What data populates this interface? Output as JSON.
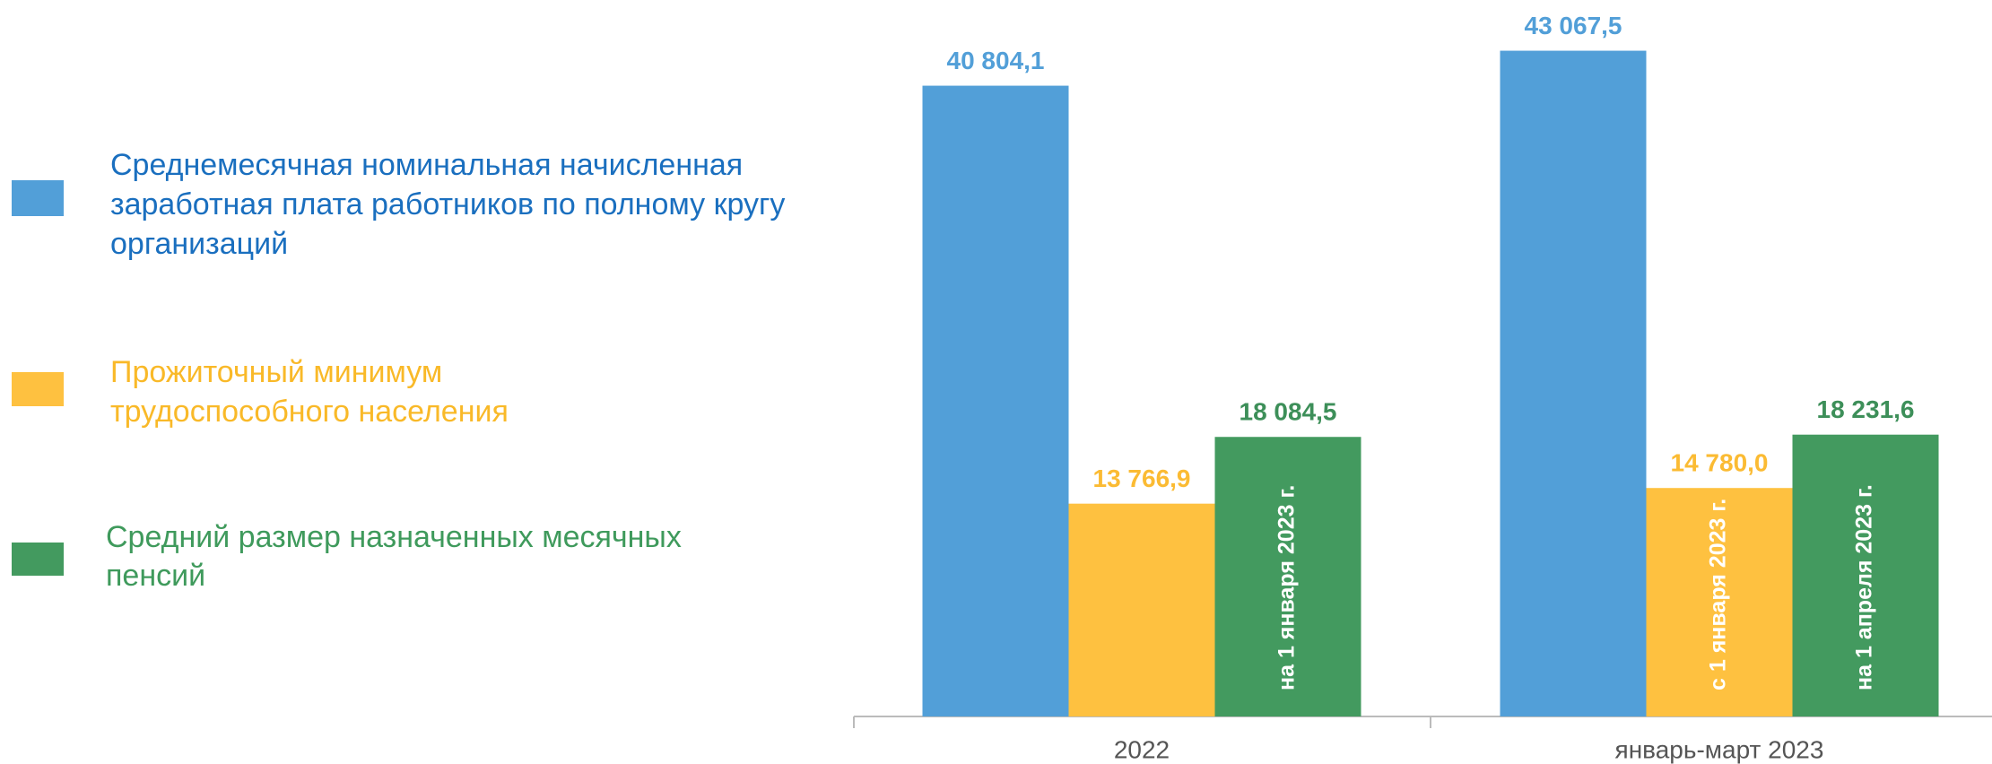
{
  "chart_data": {
    "type": "bar",
    "categories": [
      "2022",
      "январь-март 2023"
    ],
    "series": [
      {
        "name": "Среднемесячная номинальная начисленная заработная плата работников по полному кругу организаций",
        "color": "#529fd8",
        "values": [
          40804.1,
          43067.5
        ],
        "value_labels": [
          "40 804,1",
          "43 067,5"
        ],
        "notes": [
          null,
          null
        ]
      },
      {
        "name": "Прожиточный минимум трудоспособного населения",
        "color": "#fec140",
        "values": [
          13766.9,
          14780.0
        ],
        "value_labels": [
          "13 766,9",
          "14 780,0"
        ],
        "notes": [
          null,
          "с 1 января 2023 г."
        ]
      },
      {
        "name": "Средний размер назначенных месячных пенсий",
        "color": "#439a5f",
        "values": [
          18084.5,
          18231.6
        ],
        "value_labels": [
          "18 084,5",
          "18 231,6"
        ],
        "notes": [
          "на 1 января 2023 г.",
          "на 1 апреля 2023 г."
        ]
      }
    ],
    "ylim": [
      0,
      46000
    ]
  }
}
